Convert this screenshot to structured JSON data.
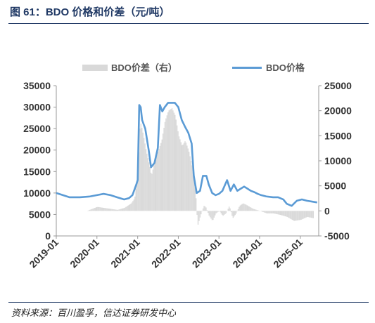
{
  "figure": {
    "title": "图 61：BDO 价格和价差（元/吨）",
    "source": "资料来源：百川盈孚，信达证券研发中心"
  },
  "colors": {
    "price_line": "#5b9bd5",
    "spread_bar": "#d9d9d9",
    "axis": "#999999"
  },
  "chart_data": {
    "type": "line",
    "title": "",
    "legend_position": "top",
    "grid": false,
    "x_axis": {
      "type": "date",
      "range": [
        "2019-01-01",
        "2025-06-15"
      ],
      "tick_labels": [
        "2019-01",
        "2020-01",
        "2021-01",
        "2022-01",
        "2023-01",
        "2024-01",
        "2025-01"
      ]
    },
    "y_left": {
      "range": [
        0,
        35000
      ],
      "ticks": [
        0,
        5000,
        10000,
        15000,
        20000,
        25000,
        30000,
        35000
      ]
    },
    "y_right": {
      "range": [
        -5000,
        25000
      ],
      "ticks": [
        -5000,
        0,
        5000,
        10000,
        15000,
        20000,
        25000
      ]
    },
    "series": [
      {
        "name": "BDO价差（右）",
        "type": "bar",
        "axis": "right",
        "points": [
          [
            "2019-01-01",
            0
          ],
          [
            "2019-04-01",
            0
          ],
          [
            "2019-07-01",
            0
          ],
          [
            "2019-10-01",
            0
          ],
          [
            "2020-01-01",
            800
          ],
          [
            "2020-04-01",
            500
          ],
          [
            "2020-07-01",
            200
          ],
          [
            "2020-09-01",
            600
          ],
          [
            "2020-11-01",
            1500
          ],
          [
            "2020-12-01",
            2500
          ],
          [
            "2021-01-01",
            8000
          ],
          [
            "2021-01-20",
            18000
          ],
          [
            "2021-02-10",
            16000
          ],
          [
            "2021-03-15",
            12000
          ],
          [
            "2021-04-15",
            9000
          ],
          [
            "2021-05-01",
            7000
          ],
          [
            "2021-06-01",
            10000
          ],
          [
            "2021-07-01",
            12000
          ],
          [
            "2021-08-01",
            14000
          ],
          [
            "2021-09-01",
            18000
          ],
          [
            "2021-10-01",
            20000
          ],
          [
            "2021-11-01",
            20500
          ],
          [
            "2021-12-01",
            19000
          ],
          [
            "2022-01-01",
            15000
          ],
          [
            "2022-02-01",
            13000
          ],
          [
            "2022-03-01",
            14000
          ],
          [
            "2022-04-01",
            12000
          ],
          [
            "2022-05-01",
            9000
          ],
          [
            "2022-06-01",
            4000
          ],
          [
            "2022-06-20",
            -3000
          ],
          [
            "2022-07-15",
            -1000
          ],
          [
            "2022-08-15",
            1000
          ],
          [
            "2022-09-01",
            800
          ],
          [
            "2022-10-01",
            -1000
          ],
          [
            "2022-11-01",
            -2000
          ],
          [
            "2022-12-01",
            -500
          ],
          [
            "2023-01-01",
            0
          ],
          [
            "2023-02-01",
            -1000
          ],
          [
            "2023-03-01",
            -500
          ],
          [
            "2023-04-01",
            1000
          ],
          [
            "2023-05-01",
            -1500
          ],
          [
            "2023-06-01",
            -500
          ],
          [
            "2023-07-01",
            1000
          ],
          [
            "2023-08-01",
            1500
          ],
          [
            "2023-09-01",
            1200
          ],
          [
            "2023-10-01",
            800
          ],
          [
            "2023-11-01",
            400
          ],
          [
            "2023-12-01",
            200
          ],
          [
            "2024-01-01",
            0
          ],
          [
            "2024-03-01",
            -500
          ],
          [
            "2024-05-01",
            -500
          ],
          [
            "2024-07-01",
            -800
          ],
          [
            "2024-09-01",
            -1200
          ],
          [
            "2024-11-01",
            -2000
          ],
          [
            "2025-01-01",
            -1800
          ],
          [
            "2025-03-01",
            -1200
          ],
          [
            "2025-05-01",
            -1500
          ]
        ]
      },
      {
        "name": "BDO价格",
        "type": "line",
        "axis": "left",
        "points": [
          [
            "2019-01-01",
            10000
          ],
          [
            "2019-03-01",
            9500
          ],
          [
            "2019-05-01",
            9000
          ],
          [
            "2019-08-01",
            9000
          ],
          [
            "2019-11-01",
            9200
          ],
          [
            "2020-01-01",
            9500
          ],
          [
            "2020-03-01",
            9800
          ],
          [
            "2020-05-01",
            9500
          ],
          [
            "2020-07-01",
            9000
          ],
          [
            "2020-09-01",
            8500
          ],
          [
            "2020-10-15",
            8800
          ],
          [
            "2020-11-15",
            9500
          ],
          [
            "2020-12-20",
            12000
          ],
          [
            "2021-01-01",
            13000
          ],
          [
            "2021-01-15",
            30500
          ],
          [
            "2021-01-28",
            30000
          ],
          [
            "2021-02-10",
            27000
          ],
          [
            "2021-03-10",
            25000
          ],
          [
            "2021-04-10",
            20000
          ],
          [
            "2021-05-01",
            16000
          ],
          [
            "2021-06-01",
            17000
          ],
          [
            "2021-07-01",
            20500
          ],
          [
            "2021-07-20",
            30500
          ],
          [
            "2021-08-10",
            29000
          ],
          [
            "2021-09-01",
            30000
          ],
          [
            "2021-10-01",
            31000
          ],
          [
            "2021-11-01",
            31000
          ],
          [
            "2021-12-01",
            31000
          ],
          [
            "2022-01-01",
            30000
          ],
          [
            "2022-02-01",
            27000
          ],
          [
            "2022-03-01",
            25500
          ],
          [
            "2022-04-01",
            24000
          ],
          [
            "2022-05-01",
            21500
          ],
          [
            "2022-05-20",
            14000
          ],
          [
            "2022-06-15",
            10000
          ],
          [
            "2022-07-15",
            10500
          ],
          [
            "2022-08-10",
            14000
          ],
          [
            "2022-09-10",
            14000
          ],
          [
            "2022-10-01",
            12000
          ],
          [
            "2022-11-01",
            10000
          ],
          [
            "2022-12-01",
            9500
          ],
          [
            "2023-01-01",
            9800
          ],
          [
            "2023-02-01",
            10500
          ],
          [
            "2023-03-15",
            13000
          ],
          [
            "2023-04-15",
            10500
          ],
          [
            "2023-05-15",
            12000
          ],
          [
            "2023-06-15",
            10500
          ],
          [
            "2023-07-15",
            11000
          ],
          [
            "2023-08-15",
            11500
          ],
          [
            "2023-09-15",
            11000
          ],
          [
            "2023-10-15",
            10500
          ],
          [
            "2023-11-15",
            10200
          ],
          [
            "2023-12-15",
            9800
          ],
          [
            "2024-01-15",
            9500
          ],
          [
            "2024-03-01",
            9200
          ],
          [
            "2024-05-01",
            9000
          ],
          [
            "2024-06-15",
            9000
          ],
          [
            "2024-08-01",
            8500
          ],
          [
            "2024-09-01",
            7500
          ],
          [
            "2024-10-15",
            7000
          ],
          [
            "2024-12-01",
            8200
          ],
          [
            "2025-01-15",
            8500
          ],
          [
            "2025-03-01",
            8200
          ],
          [
            "2025-04-15",
            8000
          ],
          [
            "2025-06-01",
            7800
          ]
        ]
      }
    ]
  }
}
